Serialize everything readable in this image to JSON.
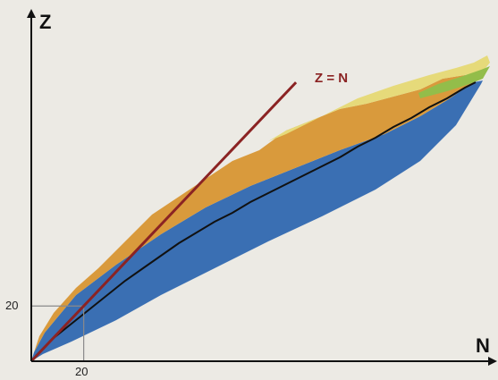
{
  "figure": {
    "background_color": "#eceae4",
    "colors": {
      "band_blue": "#3a6fb3",
      "band_orange": "#d99a3c",
      "band_yellow": "#e6da7a",
      "band_green": "#93bd4a",
      "valley_line": "#111111",
      "axes": "#111111",
      "guide": "#8a8a8a"
    }
  },
  "chart_data": {
    "type": "diagram",
    "title": "",
    "axes": {
      "x": {
        "label": "N",
        "min": 0,
        "max": 175
      },
      "y": {
        "label": "Z",
        "min": 0,
        "max": 125
      }
    },
    "reference_line": {
      "label": "Z = N",
      "color": "#8b2323",
      "x_start": 0,
      "x_end": 101
    },
    "guide_value": 20,
    "tick_labels": {
      "x": "20",
      "y": "20"
    }
  }
}
